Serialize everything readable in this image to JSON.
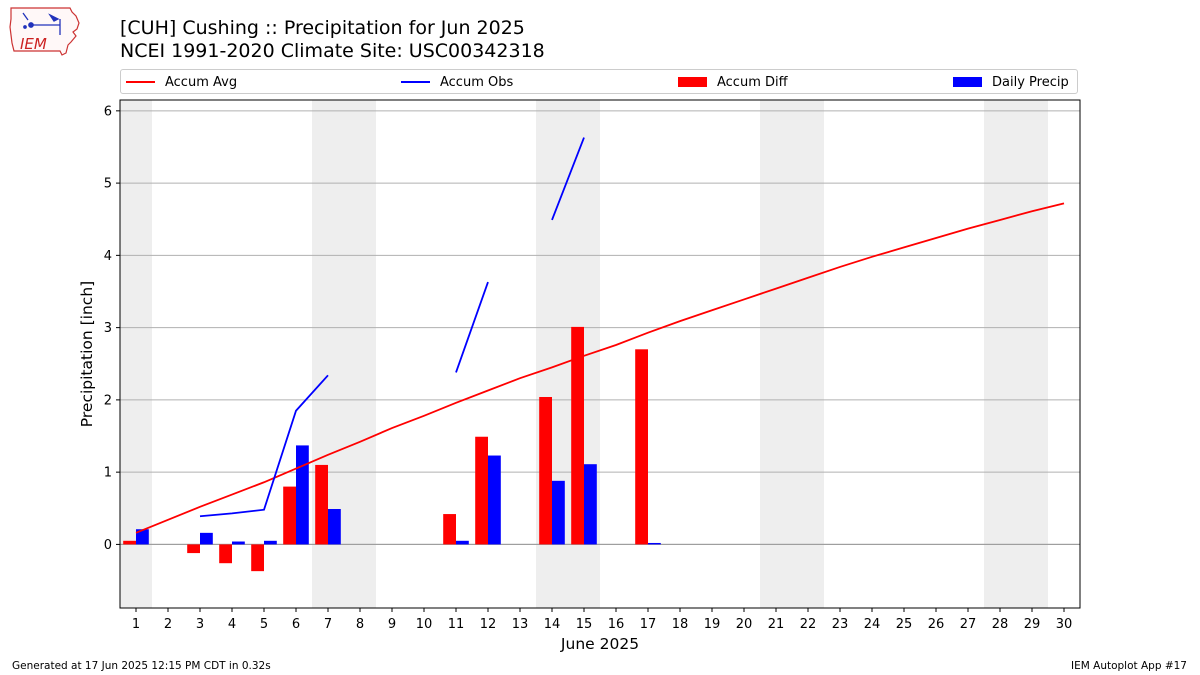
{
  "header": {
    "title_line1": "[CUH] Cushing :: Precipitation for Jun 2025",
    "title_line2": "NCEI 1991-2020 Climate Site: USC00342318"
  },
  "logo": {
    "text": "IEM",
    "icon": "iem-iowa-logo"
  },
  "footer": {
    "generated": "Generated at 17 Jun 2025 12:15 PM CDT in 0.32s",
    "app": "IEM Autoplot App #17"
  },
  "chart_data": {
    "type": "bar",
    "title": "[CUH] Cushing :: Precipitation for Jun 2025",
    "subtitle": "NCEI 1991-2020 Climate Site: USC00342318",
    "xlabel": "June 2025",
    "ylabel": "Precipitation [inch]",
    "x": [
      1,
      2,
      3,
      4,
      5,
      6,
      7,
      8,
      9,
      10,
      11,
      12,
      13,
      14,
      15,
      16,
      17,
      18,
      19,
      20,
      21,
      22,
      23,
      24,
      25,
      26,
      27,
      28,
      29,
      30
    ],
    "xlim": [
      0.5,
      30.5
    ],
    "ylim": [
      -0.88,
      6.15
    ],
    "yticks": [
      0,
      1,
      2,
      3,
      4,
      5,
      6
    ],
    "grid": "horizontal",
    "weekend_shading_days": [
      1,
      7,
      8,
      14,
      15,
      21,
      22,
      28,
      29
    ],
    "weekend_color": "#eeeeee",
    "legend": {
      "placement": "top, horizontal",
      "entries": [
        "Accum Avg",
        "Accum Obs",
        "Accum Diff",
        "Daily Precip"
      ]
    },
    "series": [
      {
        "name": "Accum Avg",
        "kind": "line",
        "color": "#ff0000",
        "values": [
          0.16,
          0.34,
          0.52,
          0.69,
          0.86,
          1.05,
          1.24,
          1.42,
          1.61,
          1.78,
          1.96,
          2.13,
          2.3,
          2.45,
          2.61,
          2.76,
          2.93,
          3.09,
          3.24,
          3.39,
          3.54,
          3.69,
          3.84,
          3.98,
          4.11,
          4.24,
          4.37,
          4.49,
          4.61,
          4.72
        ]
      },
      {
        "name": "Accum Obs",
        "kind": "line",
        "color": "#0000ff",
        "values": [
          null,
          null,
          0.39,
          0.43,
          0.48,
          1.85,
          2.34,
          null,
          null,
          null,
          2.38,
          3.63,
          null,
          4.49,
          5.63,
          null,
          null,
          null,
          null,
          null,
          null,
          null,
          null,
          null,
          null,
          null,
          null,
          null,
          null,
          null
        ]
      },
      {
        "name": "Accum Diff",
        "kind": "bar",
        "color": "#ff0000",
        "values": [
          0.05,
          null,
          -0.12,
          -0.26,
          -0.37,
          0.8,
          1.1,
          null,
          null,
          null,
          0.42,
          1.49,
          null,
          2.04,
          3.01,
          null,
          2.7,
          null,
          null,
          null,
          null,
          null,
          null,
          null,
          null,
          null,
          null,
          null,
          null,
          null
        ]
      },
      {
        "name": "Daily Precip",
        "kind": "bar",
        "color": "#0000ff",
        "values": [
          0.21,
          null,
          0.16,
          0.04,
          0.05,
          1.37,
          0.49,
          null,
          null,
          null,
          0.05,
          1.23,
          null,
          0.88,
          1.11,
          null,
          0.02,
          null,
          null,
          null,
          null,
          null,
          null,
          null,
          null,
          null,
          null,
          null,
          null,
          null
        ]
      }
    ]
  }
}
